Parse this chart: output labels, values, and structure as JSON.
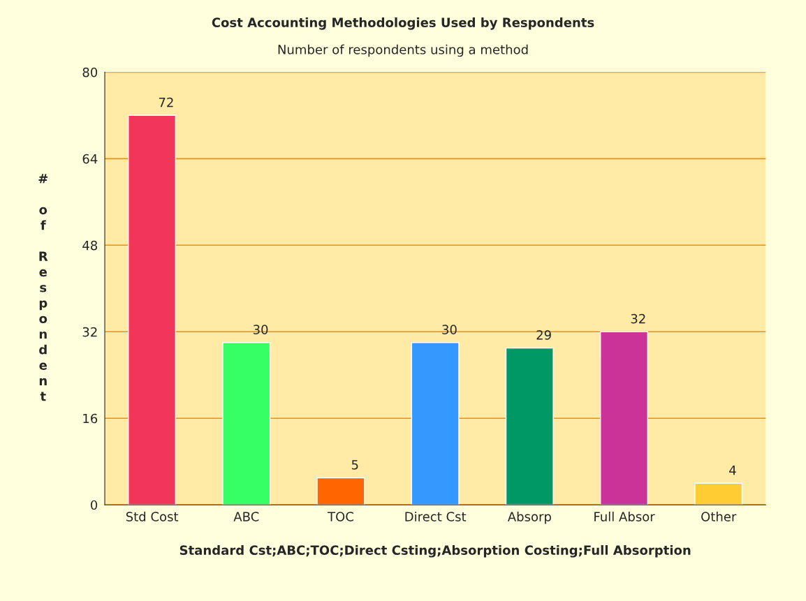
{
  "chart_data": {
    "type": "bar",
    "title": "Cost Accounting Methodologies Used by Respondents",
    "subtitle": "Number of respondents using a method",
    "ylabel": "# of Respondent",
    "xlabel": "Standard Cst;ABC;TOC;Direct Csting;Absorption Costing;Full Absorption",
    "categories": [
      "Std Cost",
      "ABC",
      "TOC",
      "Direct Cst",
      "Absorp",
      "Full Absor",
      "Other"
    ],
    "values": [
      72,
      30,
      5,
      30,
      29,
      32,
      4
    ],
    "colors": [
      "#f2365a",
      "#36ff66",
      "#ff6600",
      "#3399ff",
      "#009966",
      "#cc3399",
      "#ffcc33"
    ],
    "ylim": [
      0,
      80
    ],
    "yticks": [
      0,
      16,
      32,
      48,
      64,
      80
    ],
    "grid": "y",
    "data_labels": true
  }
}
